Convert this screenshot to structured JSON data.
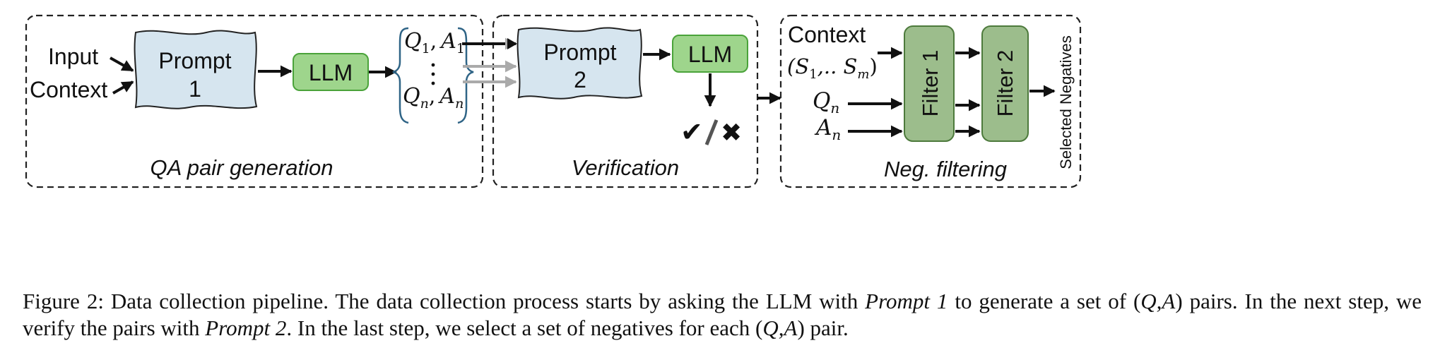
{
  "colors": {
    "prompt_fill": "#d6e5ef",
    "llm_fill": "#9ed58c",
    "llm_stroke": "#4aa33a",
    "filter_fill": "#9cbd8c",
    "filter_stroke": "#4d7a3c",
    "brace": "#2f6486",
    "grey_arrow": "#aaaaaa"
  },
  "panels": {
    "qa": {
      "title": "QA pair generation",
      "input_label": "Input",
      "context_label": "Context",
      "prompt_line1": "Prompt",
      "prompt_line2": "1",
      "llm_label": "LLM",
      "q1": "Q",
      "q1_sub": "1",
      "a1": "A",
      "a1_sub": "1",
      "qn": "Q",
      "qn_sub": "n",
      "an": "A",
      "an_sub": "n",
      "comma": ","
    },
    "verification": {
      "title": "Verification",
      "prompt_line1": "Prompt",
      "prompt_line2": "2",
      "llm_label": "LLM",
      "check": "✔",
      "slash": "/",
      "cross": "✖"
    },
    "neg": {
      "title": "Neg. filtering",
      "context_label": "Context",
      "s_open": "(S",
      "s1_sub": "1",
      "s_mid": ",.. S",
      "sm_sub": "m",
      "s_close": ")",
      "qn": "Q",
      "qn_sub": "n",
      "an": "A",
      "an_sub": "n",
      "filter1": "Filter 1",
      "filter2": "Filter 2",
      "output_label": "Selected Negatives"
    }
  },
  "caption": {
    "t1": "Figure 2: Data collection pipeline. The data collection process starts by asking the LLM with ",
    "i1": "Prompt 1",
    "t2": " to generate a set of (",
    "qa1": "Q,A",
    "t3": ") pairs. In the next step, we verify the pairs with ",
    "i2": "Prompt 2",
    "t4": ". In the last step, we select a set of negatives for each (",
    "qa2": "Q,A",
    "t5": ") pair."
  }
}
